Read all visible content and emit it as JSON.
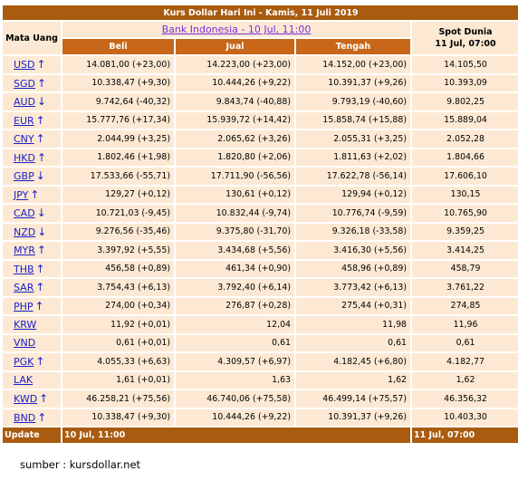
{
  "title": "Kurs Dollar Hari Ini - Kamis, 11 Juli 2019",
  "bank_indonesia": "Bank Indonesia - 10 Jul, 11:00",
  "spot_title": "Spot Dunia",
  "spot_date": "11 Jul, 07:00",
  "headers": {
    "mata_uang": "Mata Uang",
    "beli": "Beli",
    "jual": "Jual",
    "tengah": "Tengah"
  },
  "rows": [
    {
      "code": "USD",
      "dir": "up",
      "beli": "14.081,00",
      "beli_chg": "(+23,00)",
      "jual": "14.223,00",
      "jual_chg": "(+23,00)",
      "tengah": "14.152,00",
      "tengah_chg": "(+23,00)",
      "spot": "14.105,50"
    },
    {
      "code": "SGD",
      "dir": "up",
      "beli": "10.338,47",
      "beli_chg": "(+9,30)",
      "jual": "10.444,26",
      "jual_chg": "(+9,22)",
      "tengah": "10.391,37",
      "tengah_chg": "(+9,26)",
      "spot": "10.393,09"
    },
    {
      "code": "AUD",
      "dir": "down",
      "beli": "9.742,64",
      "beli_chg": "(-40,32)",
      "jual": "9.843,74",
      "jual_chg": "(-40,88)",
      "tengah": "9.793,19",
      "tengah_chg": "(-40,60)",
      "spot": "9.802,25"
    },
    {
      "code": "EUR",
      "dir": "up",
      "beli": "15.777,76",
      "beli_chg": "(+17,34)",
      "jual": "15.939,72",
      "jual_chg": "(+14,42)",
      "tengah": "15.858,74",
      "tengah_chg": "(+15,88)",
      "spot": "15.889,04"
    },
    {
      "code": "CNY",
      "dir": "up",
      "beli": "2.044,99",
      "beli_chg": "(+3,25)",
      "jual": "2.065,62",
      "jual_chg": "(+3,26)",
      "tengah": "2.055,31",
      "tengah_chg": "(+3,25)",
      "spot": "2.052,28"
    },
    {
      "code": "HKD",
      "dir": "up",
      "beli": "1.802,46",
      "beli_chg": "(+1,98)",
      "jual": "1.820,80",
      "jual_chg": "(+2,06)",
      "tengah": "1.811,63",
      "tengah_chg": "(+2,02)",
      "spot": "1.804,66"
    },
    {
      "code": "GBP",
      "dir": "down",
      "beli": "17.533,66",
      "beli_chg": "(-55,71)",
      "jual": "17.711,90",
      "jual_chg": "(-56,56)",
      "tengah": "17.622,78",
      "tengah_chg": "(-56,14)",
      "spot": "17.606,10"
    },
    {
      "code": "JPY",
      "dir": "up",
      "beli": "129,27",
      "beli_chg": "(+0,12)",
      "jual": "130,61",
      "jual_chg": "(+0,12)",
      "tengah": "129,94",
      "tengah_chg": "(+0,12)",
      "spot": "130,15"
    },
    {
      "code": "CAD",
      "dir": "down",
      "beli": "10.721,03",
      "beli_chg": "(-9,45)",
      "jual": "10.832,44",
      "jual_chg": "(-9,74)",
      "tengah": "10.776,74",
      "tengah_chg": "(-9,59)",
      "spot": "10.765,90"
    },
    {
      "code": "NZD",
      "dir": "down",
      "beli": "9.276,56",
      "beli_chg": "(-35,46)",
      "jual": "9.375,80",
      "jual_chg": "(-31,70)",
      "tengah": "9.326,18",
      "tengah_chg": "(-33,58)",
      "spot": "9.359,25"
    },
    {
      "code": "MYR",
      "dir": "up",
      "beli": "3.397,92",
      "beli_chg": "(+5,55)",
      "jual": "3.434,68",
      "jual_chg": "(+5,56)",
      "tengah": "3.416,30",
      "tengah_chg": "(+5,56)",
      "spot": "3.414,25"
    },
    {
      "code": "THB",
      "dir": "up",
      "beli": "456,58",
      "beli_chg": "(+0,89)",
      "jual": "461,34",
      "jual_chg": "(+0,90)",
      "tengah": "458,96",
      "tengah_chg": "(+0,89)",
      "spot": "458,79"
    },
    {
      "code": "SAR",
      "dir": "up",
      "beli": "3.754,43",
      "beli_chg": "(+6,13)",
      "jual": "3.792,40",
      "jual_chg": "(+6,14)",
      "tengah": "3.773,42",
      "tengah_chg": "(+6,13)",
      "spot": "3.761,22"
    },
    {
      "code": "PHP",
      "dir": "up",
      "beli": "274,00",
      "beli_chg": "(+0,34)",
      "jual": "276,87",
      "jual_chg": "(+0,28)",
      "tengah": "275,44",
      "tengah_chg": "(+0,31)",
      "spot": "274,85"
    },
    {
      "code": "KRW",
      "dir": "",
      "beli": "11,92",
      "beli_chg": "(+0,01)",
      "jual": "12,04",
      "jual_chg": "",
      "tengah": "11,98",
      "tengah_chg": "",
      "spot": "11,96"
    },
    {
      "code": "VND",
      "dir": "",
      "beli": "0,61",
      "beli_chg": "(+0,01)",
      "jual": "0,61",
      "jual_chg": "",
      "tengah": "0,61",
      "tengah_chg": "",
      "spot": "0,61"
    },
    {
      "code": "PGK",
      "dir": "up",
      "beli": "4.055,33",
      "beli_chg": "(+6,63)",
      "jual": "4.309,57",
      "jual_chg": "(+6,97)",
      "tengah": "4.182,45",
      "tengah_chg": "(+6,80)",
      "spot": "4.182,77"
    },
    {
      "code": "LAK",
      "dir": "",
      "beli": "1,61",
      "beli_chg": "(+0,01)",
      "jual": "1,63",
      "jual_chg": "",
      "tengah": "1,62",
      "tengah_chg": "",
      "spot": "1,62"
    },
    {
      "code": "KWD",
      "dir": "up",
      "beli": "46.258,21",
      "beli_chg": "(+75,56)",
      "jual": "46.740,06",
      "jual_chg": "(+75,58)",
      "tengah": "46.499,14",
      "tengah_chg": "(+75,57)",
      "spot": "46.356,32"
    },
    {
      "code": "BND",
      "dir": "up",
      "beli": "10.338,47",
      "beli_chg": "(+9,30)",
      "jual": "10.444,26",
      "jual_chg": "(+9,22)",
      "tengah": "10.391,37",
      "tengah_chg": "(+9,26)",
      "spot": "10.403,30"
    }
  ],
  "footer": {
    "update_label": "Update",
    "bi_date": "10 Jul, 11:00",
    "spot_date": "11 Jul, 07:00"
  },
  "source_text": "sumber : kursdollar.net"
}
